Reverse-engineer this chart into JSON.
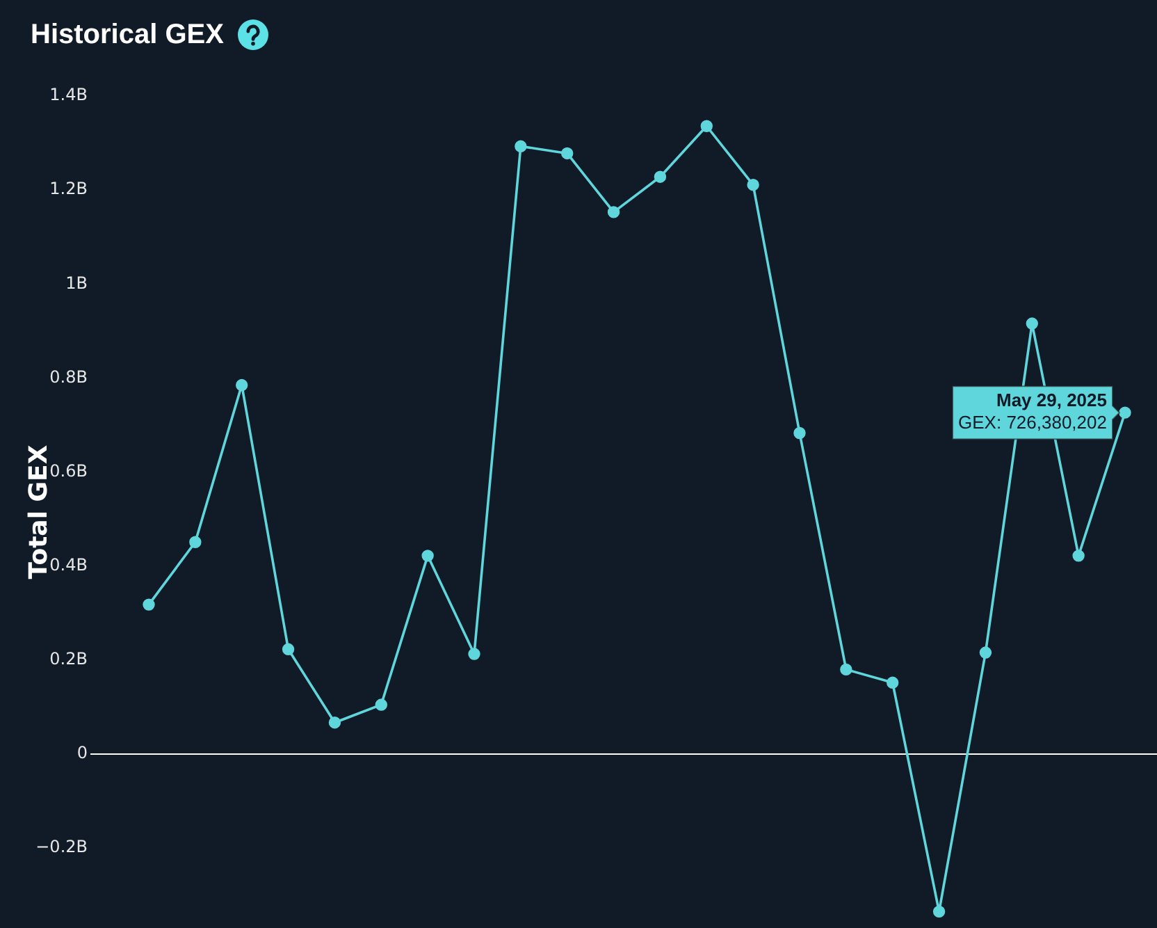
{
  "chart_data": {
    "type": "line",
    "title": "Historical GEX",
    "ylabel": "Total GEX",
    "categories": [
      null,
      null,
      null,
      null,
      null,
      null,
      null,
      null,
      null,
      null,
      null,
      null,
      null,
      null,
      null,
      null,
      null,
      null,
      null,
      null,
      null,
      null
    ],
    "values": [
      0.318,
      0.451,
      0.785,
      0.223,
      0.067,
      0.105,
      0.422,
      0.213,
      1.293,
      1.278,
      1.153,
      1.228,
      1.336,
      1.211,
      0.683,
      0.18,
      0.152,
      -0.335,
      0.216,
      0.916,
      0.422,
      0.726380202
    ],
    "color": "#5fd6db",
    "marker": "circle",
    "ylim": [
      -0.37,
      1.4
    ],
    "yticks": [
      {
        "value": -0.2,
        "label": "−0.2B"
      },
      0,
      {
        "value": 0.2,
        "label": "0.2B"
      },
      {
        "value": 0.4,
        "label": "0.4B"
      },
      {
        "value": 0.6,
        "label": "0.6B"
      },
      {
        "value": 0.8,
        "label": "0.8B"
      },
      {
        "value": 1,
        "label": "1B"
      },
      {
        "value": 1.2,
        "label": "1.2B"
      },
      {
        "value": 1.4,
        "label": "1.4B"
      }
    ],
    "tick_labels": "y",
    "ref_lines": [
      {
        "axis": "y",
        "value": 0,
        "color": "#ffffff"
      }
    ],
    "annotations": [
      "May 29, 2025\nGEX: 726,380,202"
    ]
  }
}
